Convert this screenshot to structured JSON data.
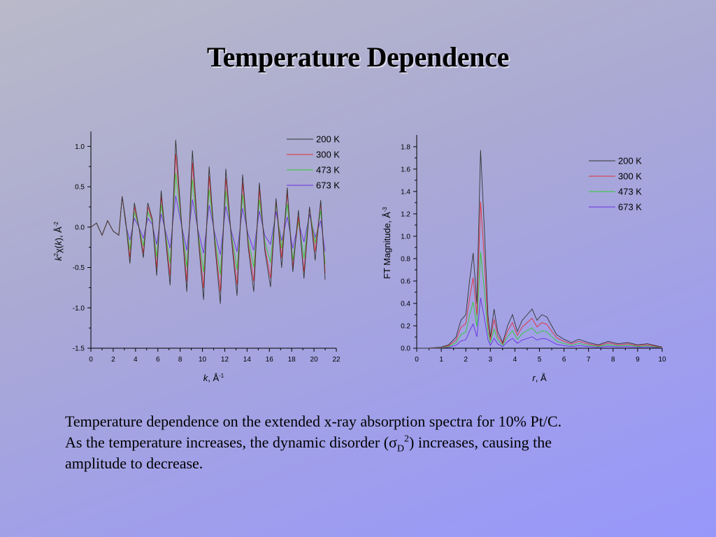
{
  "title": "Temperature Dependence",
  "caption": {
    "line1": "Temperature dependence on the extended x-ray absorption spectra for 10% Pt/C.",
    "line2_a": "As the temperature increases, the dynamic disorder (",
    "sigma": "σ",
    "sub": "D",
    "sup": "2",
    "line2_b": ") increases, causing the",
    "line3": "amplitude to decrease."
  },
  "chart_data": [
    {
      "type": "line",
      "xlabel": "k, Å-1",
      "ylabel": "k2χ(k), Å-2",
      "xlim": [
        0,
        22
      ],
      "ylim": [
        -1.5,
        1.15
      ],
      "xticks": [
        0,
        2,
        4,
        6,
        8,
        10,
        12,
        14,
        16,
        18,
        20,
        22
      ],
      "yticks": [
        -1.5,
        -1.0,
        -0.5,
        0.0,
        0.5,
        1.0
      ],
      "legend_position": "top-right",
      "series": [
        {
          "name": "200 K",
          "color": "#333333",
          "amp": 1.0
        },
        {
          "name": "300 K",
          "color": "#e0303a",
          "amp": 0.84
        },
        {
          "name": "473 K",
          "color": "#2ecc2e",
          "amp": 0.62
        },
        {
          "name": "673 K",
          "color": "#6a30e0",
          "amp": 0.36
        }
      ],
      "x": [
        0,
        0.5,
        1,
        1.5,
        2,
        2.5,
        2.8,
        3.1,
        3.5,
        3.9,
        4.3,
        4.7,
        5.1,
        5.5,
        5.9,
        6.3,
        6.7,
        7.1,
        7.6,
        8.1,
        8.6,
        9.1,
        9.6,
        10.1,
        10.6,
        11.1,
        11.6,
        12.1,
        12.6,
        13.1,
        13.6,
        14.1,
        14.6,
        15.1,
        15.6,
        16.1,
        16.6,
        17.1,
        17.6,
        18.1,
        18.6,
        19.1,
        19.6,
        20.1,
        20.6,
        21.0
      ],
      "y_200K": [
        0,
        0.05,
        -0.1,
        0.08,
        -0.05,
        -0.1,
        0.38,
        0.1,
        -0.45,
        0.3,
        0.0,
        -0.38,
        0.3,
        0.1,
        -0.6,
        0.45,
        -0.15,
        -0.72,
        1.08,
        0.1,
        -0.8,
        0.95,
        -0.1,
        -0.9,
        0.75,
        -0.2,
        -0.95,
        0.72,
        -0.15,
        -0.85,
        0.65,
        -0.25,
        -0.8,
        0.55,
        -0.3,
        -0.7,
        0.4,
        -0.5,
        0.45,
        -0.6,
        0.2,
        -0.6,
        0.3,
        -0.4,
        0.3,
        -0.7
      ]
    },
    {
      "type": "line",
      "xlabel": "r, Å",
      "ylabel": "FT Magnitude, Å-3",
      "xlim": [
        0,
        10
      ],
      "ylim": [
        0,
        1.88
      ],
      "xticks": [
        0,
        1,
        2,
        3,
        4,
        5,
        6,
        7,
        8,
        9,
        10
      ],
      "yticks": [
        0.0,
        0.2,
        0.4,
        0.6,
        0.8,
        1.0,
        1.2,
        1.4,
        1.6,
        1.8
      ],
      "legend_position": "top-right",
      "series": [
        {
          "name": "200 K",
          "color": "#333333",
          "peak": 1.77
        },
        {
          "name": "300 K",
          "color": "#e0303a",
          "peak": 1.31
        },
        {
          "name": "473 K",
          "color": "#2ecc2e",
          "peak": 0.86
        },
        {
          "name": "673 K",
          "color": "#6a30e0",
          "peak": 0.45
        }
      ],
      "x": [
        0,
        0.5,
        1,
        1.3,
        1.6,
        1.8,
        2.0,
        2.15,
        2.3,
        2.45,
        2.6,
        2.75,
        2.9,
        3.0,
        3.15,
        3.3,
        3.5,
        3.7,
        3.9,
        4.1,
        4.3,
        4.5,
        4.7,
        4.9,
        5.1,
        5.3,
        5.5,
        5.7,
        6.0,
        6.3,
        6.6,
        7.0,
        7.4,
        7.8,
        8.2,
        8.6,
        9.0,
        9.4,
        9.8,
        10.0
      ],
      "y_200K": [
        0,
        0,
        0.01,
        0.03,
        0.1,
        0.25,
        0.3,
        0.6,
        0.85,
        0.4,
        1.77,
        1.1,
        0.3,
        0.1,
        0.35,
        0.15,
        0.05,
        0.2,
        0.3,
        0.15,
        0.25,
        0.3,
        0.35,
        0.25,
        0.3,
        0.28,
        0.2,
        0.12,
        0.08,
        0.05,
        0.08,
        0.05,
        0.03,
        0.06,
        0.04,
        0.05,
        0.03,
        0.04,
        0.02,
        0.01
      ]
    }
  ]
}
